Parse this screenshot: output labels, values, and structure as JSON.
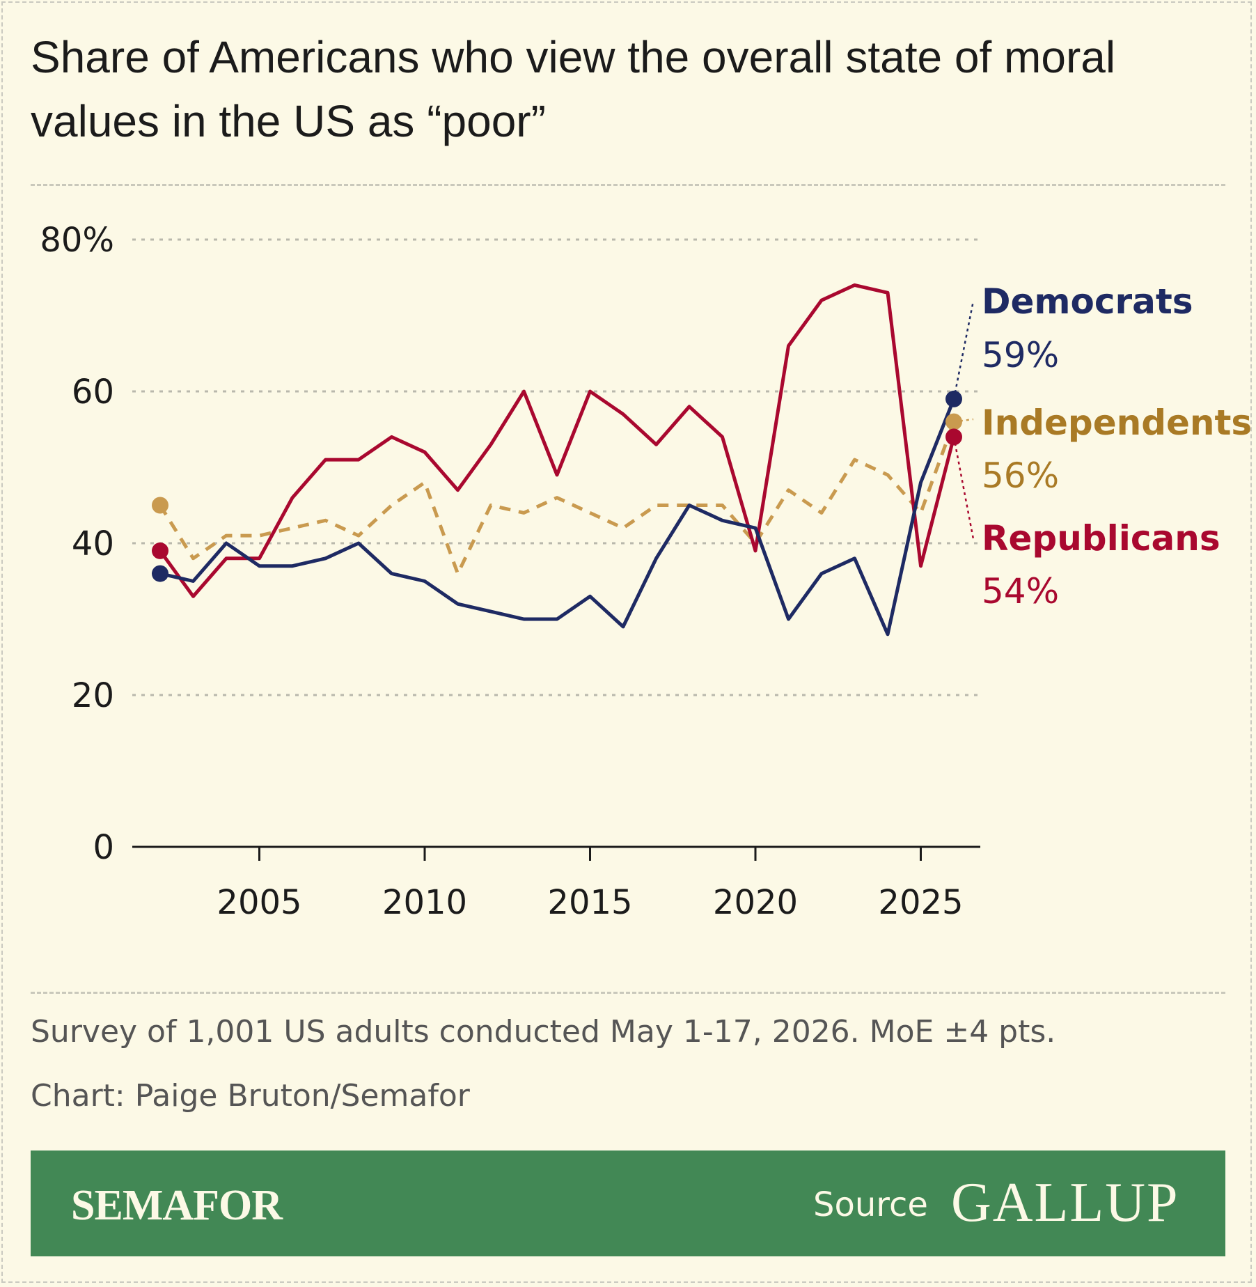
{
  "title": "Share of Americans who view the overall state of moral values in the US as “poor”",
  "notes": {
    "survey": "Survey of 1,001 US adults conducted May 1-17, 2026. MoE ±4 pts.",
    "credit": "Chart: Paige Bruton/Semafor"
  },
  "footer": {
    "brand": "SEMAFOR",
    "source_label": "Source",
    "source_name": "GALLUP"
  },
  "colors": {
    "background": "#fcf9e6",
    "democrats": "#1e2a63",
    "independents": "#c99a4f",
    "independents_label": "#a97a25",
    "republicans": "#a9082f",
    "footer": "#428855"
  },
  "chart_data": {
    "type": "line",
    "title": "Share of Americans who view the overall state of moral values in the US as “poor”",
    "xlabel": "",
    "ylabel": "",
    "xlim": [
      2002,
      2026
    ],
    "ylim": [
      0,
      80
    ],
    "x_ticks": [
      2005,
      2010,
      2015,
      2020,
      2025
    ],
    "y_ticks": [
      0,
      20,
      40,
      60,
      80
    ],
    "y_tick_labels": [
      "0",
      "20",
      "40",
      "60",
      "80%"
    ],
    "grid": true,
    "legend_placement": "right, end-of-line labels",
    "x": [
      2002,
      2003,
      2004,
      2005,
      2006,
      2007,
      2008,
      2009,
      2010,
      2011,
      2012,
      2013,
      2014,
      2015,
      2016,
      2017,
      2018,
      2019,
      2020,
      2021,
      2022,
      2023,
      2024,
      2025,
      2026
    ],
    "series": [
      {
        "name": "Democrats",
        "end_label": "59%",
        "style": "solid",
        "values": [
          36,
          35,
          40,
          37,
          37,
          38,
          40,
          36,
          35,
          32,
          31,
          30,
          30,
          33,
          29,
          38,
          45,
          43,
          42,
          30,
          36,
          38,
          28,
          48,
          59
        ]
      },
      {
        "name": "Independents",
        "end_label": "56%",
        "style": "dashed",
        "values": [
          45,
          38,
          41,
          41,
          42,
          43,
          41,
          45,
          48,
          36,
          45,
          44,
          46,
          44,
          42,
          45,
          45,
          45,
          40,
          47,
          44,
          51,
          49,
          44,
          56
        ]
      },
      {
        "name": "Republicans",
        "end_label": "54%",
        "style": "solid",
        "values": [
          39,
          33,
          38,
          38,
          46,
          51,
          51,
          54,
          52,
          47,
          53,
          60,
          49,
          60,
          57,
          53,
          58,
          54,
          39,
          66,
          72,
          74,
          73,
          37,
          54
        ]
      }
    ]
  }
}
